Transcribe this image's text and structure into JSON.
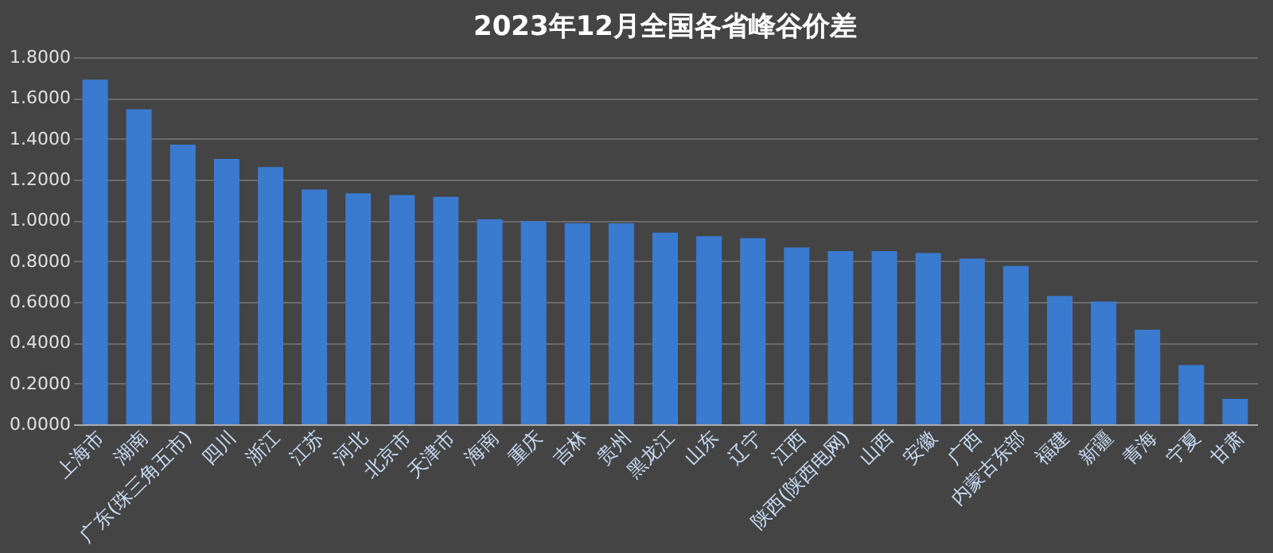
{
  "chart_data": {
    "type": "bar",
    "title": "2023年12月全国各省峰谷价差",
    "categories": [
      "上海市",
      "湖南",
      "广东(珠三角五市)",
      "四川",
      "浙江",
      "江苏",
      "河北",
      "北京市",
      "天津市",
      "海南",
      "重庆",
      "吉林",
      "贵州",
      "黑龙江",
      "山东",
      "辽宁",
      "江西",
      "陕西(陕西电网)",
      "山西",
      "安徽",
      "广西",
      "内蒙古东部",
      "福建",
      "新疆",
      "青海",
      "宁夏",
      "甘肃"
    ],
    "values": [
      1.69,
      1.545,
      1.371,
      1.301,
      1.261,
      1.151,
      1.133,
      1.124,
      1.115,
      1.005,
      0.995,
      0.986,
      0.986,
      0.94,
      0.922,
      0.913,
      0.867,
      0.849,
      0.849,
      0.84,
      0.812,
      0.776,
      0.629,
      0.602,
      0.464,
      0.29,
      0.125
    ],
    "color": "#3a7bd0",
    "ylim": [
      0,
      1.8
    ],
    "yticks": [
      {
        "value": 0,
        "label": "0.0000"
      },
      {
        "value": 0.2,
        "label": "0.2000"
      },
      {
        "value": 0.4,
        "label": "0.4000"
      },
      {
        "value": 0.6,
        "label": "0.6000"
      },
      {
        "value": 0.8,
        "label": "0.8000"
      },
      {
        "value": 1.0,
        "label": "1.0000"
      },
      {
        "value": 1.2,
        "label": "1.2000"
      },
      {
        "value": 1.4,
        "label": "1.4000"
      },
      {
        "value": 1.6,
        "label": "1.6000"
      },
      {
        "value": 1.8,
        "label": "1.8000"
      }
    ],
    "grid": "y"
  }
}
